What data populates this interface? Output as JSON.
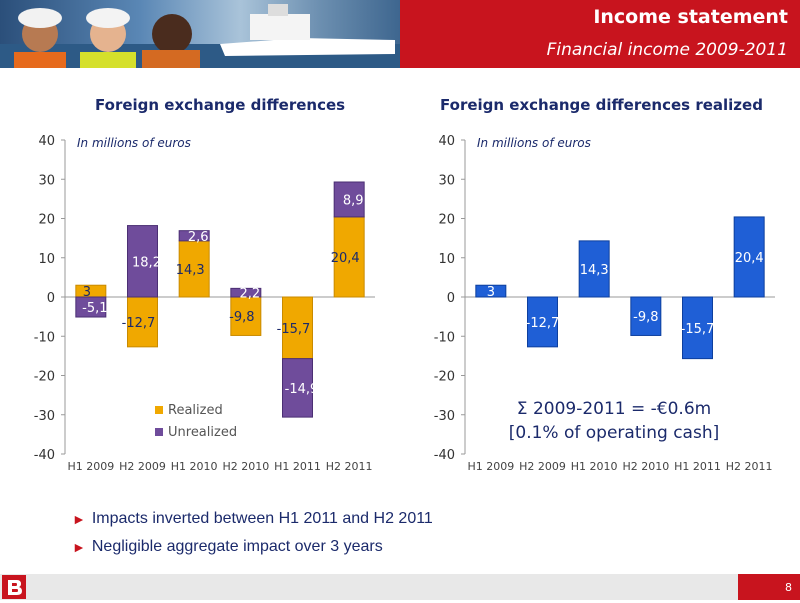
{
  "header": {
    "title": "Income statement",
    "subtitle": "Financial income 2009-2011"
  },
  "unit_note": "In millions of euros",
  "colors": {
    "realized": "#f0a800",
    "unrealized": "#6f4c9b",
    "realized_only": "#1f5fd6",
    "accent": "#c8141e",
    "navy": "#1b2a6b"
  },
  "chart_data": [
    {
      "type": "bar",
      "stacked": true,
      "title": "Foreign exchange differences",
      "categories": [
        "H1 2009",
        "H2 2009",
        "H1 2010",
        "H2 2010",
        "H1 2011",
        "H2 2011"
      ],
      "ylim": [
        -40,
        40
      ],
      "yticks": [
        40,
        30,
        20,
        10,
        0,
        -10,
        -20,
        -30,
        -40
      ],
      "series": [
        {
          "name": "Realized",
          "values": [
            3,
            -12.7,
            14.3,
            -9.8,
            -15.7,
            20.4
          ],
          "labels": [
            "3",
            "-12,7",
            "14,3",
            "-9,8",
            "-15,7",
            "20,4"
          ]
        },
        {
          "name": "Unrealized",
          "values": [
            -5.1,
            18.2,
            2.6,
            2.2,
            -14.9,
            8.9
          ],
          "labels": [
            "-5,1",
            "18,2",
            "2,6",
            "2,2",
            "-14,9",
            "8,9"
          ]
        }
      ],
      "legend": "bottom-right"
    },
    {
      "type": "bar",
      "title": "Foreign exchange differences realized",
      "categories": [
        "H1 2009",
        "H2 2009",
        "H1 2010",
        "H2 2010",
        "H1 2011",
        "H2 2011"
      ],
      "ylim": [
        -40,
        40
      ],
      "yticks": [
        40,
        30,
        20,
        10,
        0,
        -10,
        -20,
        -30,
        -40
      ],
      "series": [
        {
          "values": [
            3,
            -12.7,
            14.3,
            -9.8,
            -15.7,
            20.4
          ],
          "labels": [
            "3",
            "-12,7",
            "14,3",
            "-9,8",
            "-15,7",
            "20,4"
          ]
        }
      ],
      "annotation": [
        "Σ 2009-2011 = -€0.6m",
        "[0.1% of operating cash]"
      ]
    }
  ],
  "bullets": [
    "Impacts inverted between H1 2011 and H2 2011",
    "Negligible aggregate impact over 3 years"
  ],
  "footer": {
    "page": "8"
  }
}
